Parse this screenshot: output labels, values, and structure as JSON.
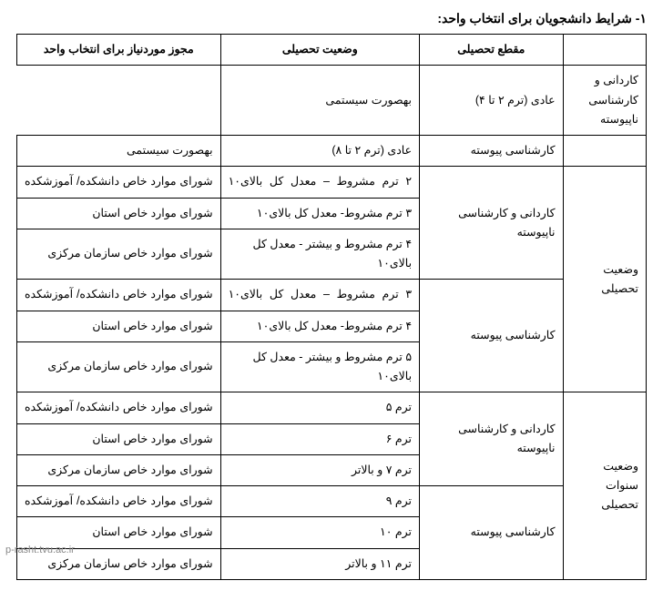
{
  "title": "۱- شرایط دانشجویان برای انتخاب واحد:",
  "headers": {
    "level": "مقطع تحصیلی",
    "status": "وضعیت تحصیلی",
    "permit": "مجوز موردنیاز برای انتخاب واحد"
  },
  "categories": {
    "edu_status": "وضعیت تحصیلی",
    "edu_years": "وضعیت سنوات تحصیلی"
  },
  "levels": {
    "assoc_nonc": "کاردانی و کارشناسی ناپیوسته",
    "bach_cont": "کارشناسی پیوسته"
  },
  "statuses": {
    "r1_s": "عادی (ترم ۲ تا ۴)",
    "r2_s": "عادی (ترم ۲ تا ۸)",
    "r3_s": "۲ ترم مشروط – معدل کل بالای۱۰",
    "r4_s": "۳ ترم مشروط- معدل کل بالای۱۰",
    "r5_s": "۴ ترم مشروط و بیشتر - معدل کل بالای۱۰",
    "r6_s": "۳ ترم مشروط – معدل کل بالای۱۰",
    "r7_s": "۴ ترم مشروط- معدل کل بالای۱۰",
    "r8_s": "۵ ترم مشروط و بیشتر - معدل کل بالای۱۰",
    "r9_s": "ترم ۵",
    "r10_s": "ترم ۶",
    "r11_s": "ترم ۷ و بالاتر",
    "r12_s": "ترم ۹",
    "r13_s": "ترم ۱۰",
    "r14_s": "ترم ۱۱ و بالاتر"
  },
  "permits": {
    "sys": "بهصورت سیستمی",
    "faculty": "شورای موارد خاص دانشکده/ آموزشکده",
    "province": "شورای موارد خاص استان",
    "central": "شورای موارد خاص سازمان مرکزی",
    "faculty2": "شورای  موارد خاص دانشکده/ آموزشکده",
    "province2": "شورای  موارد خاص استان",
    "central2": "شورای  موارد خاص سازمان مرکزی"
  },
  "watermark": "p-rasht.tvu.ac.ir"
}
